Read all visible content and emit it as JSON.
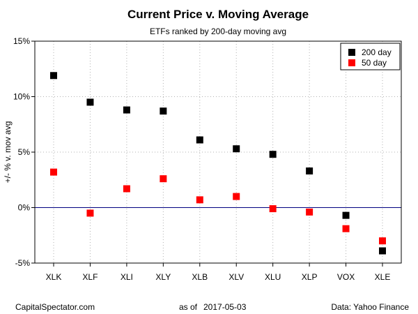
{
  "chart_data": {
    "type": "scatter",
    "title": "Current Price v. Moving Average",
    "subtitle": "ETFs ranked by 200-day moving avg",
    "ylabel": "+/- % v. mov avg",
    "xlabel": "",
    "categories": [
      "XLK",
      "XLF",
      "XLI",
      "XLY",
      "XLB",
      "XLV",
      "XLU",
      "XLP",
      "VOX",
      "XLE"
    ],
    "yticks": [
      "15%",
      "10%",
      "5%",
      "0%",
      "-5%"
    ],
    "ytick_values": [
      15,
      10,
      5,
      0,
      -5
    ],
    "ylim": [
      -5,
      15
    ],
    "grid": true,
    "zero_line": true,
    "legend_position": "top-right",
    "series": [
      {
        "name": "200 day",
        "color": "#000000",
        "values": [
          11.9,
          9.5,
          8.8,
          8.7,
          6.1,
          5.3,
          4.8,
          3.3,
          -0.7,
          -3.9
        ]
      },
      {
        "name": "50 day",
        "color": "#ff0000",
        "values": [
          3.2,
          -0.5,
          1.7,
          2.6,
          0.7,
          1.0,
          -0.1,
          -0.4,
          -1.9,
          -3.0
        ]
      }
    ]
  },
  "footer": {
    "source_left": "CapitalSpectator.com",
    "as_of_label": "as of",
    "date": "2017-05-03",
    "data_source": "Data: Yahoo Finance"
  }
}
